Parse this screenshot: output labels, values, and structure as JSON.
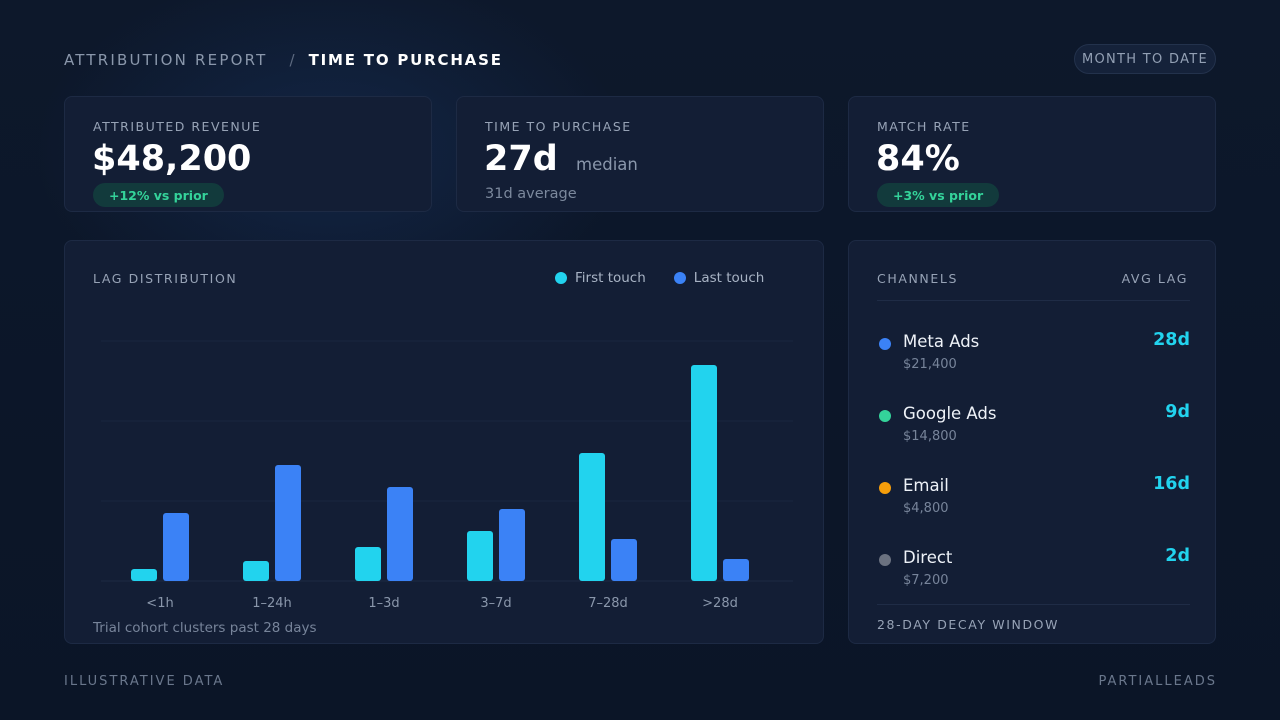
{
  "header": {
    "breadcrumb_parent": "ATTRIBUTION REPORT",
    "breadcrumb_separator": "/",
    "breadcrumb_current": "TIME TO PURCHASE",
    "range_button": "MONTH TO DATE"
  },
  "kpis": {
    "revenue": {
      "label": "ATTRIBUTED REVENUE",
      "value": "$48,200",
      "delta": "+12% vs prior"
    },
    "time": {
      "label": "TIME TO PURCHASE",
      "value": "27d",
      "suffix": "median",
      "sub": "31d average"
    },
    "match": {
      "label": "MATCH RATE",
      "value": "84%",
      "delta": "+3% vs prior"
    }
  },
  "lag_panel": {
    "title": "LAG DISTRIBUTION",
    "caption": "Trial cohort clusters past 28 days"
  },
  "chart_data": {
    "type": "bar",
    "categories": [
      "<1h",
      "1–24h",
      "1–3d",
      "3–7d",
      "7–28d",
      ">28d"
    ],
    "series": [
      {
        "name": "First touch",
        "color": "#22d3ee",
        "values": [
          3,
          5,
          8.5,
          12.5,
          32,
          54
        ]
      },
      {
        "name": "Last touch",
        "color": "#3b82f6",
        "values": [
          17,
          29,
          23.5,
          18,
          10.5,
          5.5
        ]
      }
    ],
    "ylim": [
      0,
      60
    ],
    "grid": true,
    "legend": "top-right"
  },
  "channels": {
    "title": "CHANNELS",
    "metric_label": "AVG LAG",
    "items": [
      {
        "name": "Meta Ads",
        "revenue": "$21,400",
        "lag": "28d",
        "color": "#3b82f6"
      },
      {
        "name": "Google Ads",
        "revenue": "$14,800",
        "lag": "9d",
        "color": "#34d39a"
      },
      {
        "name": "Email",
        "revenue": "$4,800",
        "lag": "16d",
        "color": "#f59e0b"
      },
      {
        "name": "Direct",
        "revenue": "$7,200",
        "lag": "2d",
        "color": "#6b7280"
      }
    ],
    "footer": "28-DAY DECAY WINDOW"
  },
  "footer": {
    "left": "ILLUSTRATIVE DATA",
    "right": "PARTIALLEADS"
  }
}
